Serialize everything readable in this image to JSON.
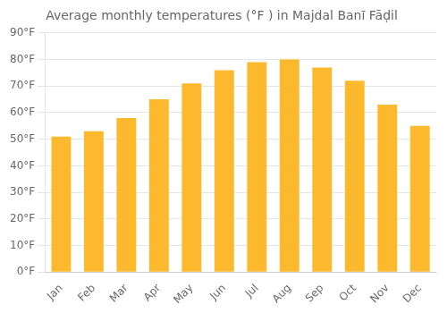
{
  "chart_data": {
    "type": "bar",
    "title": "Average monthly temperatures (°F ) in Majdal Banī Fāḍil",
    "categories": [
      "Jan",
      "Feb",
      "Mar",
      "Apr",
      "May",
      "Jun",
      "Jul",
      "Aug",
      "Sep",
      "Oct",
      "Nov",
      "Dec"
    ],
    "values": [
      51,
      53,
      58,
      65,
      71,
      76,
      79,
      80,
      77,
      72,
      63,
      55
    ],
    "color": "#FDB92E",
    "ylim": [
      0,
      90
    ],
    "yticks": [
      {
        "value": 0,
        "label": "0°F"
      },
      {
        "value": 10,
        "label": "10°F"
      },
      {
        "value": 20,
        "label": "20°F"
      },
      {
        "value": 30,
        "label": "30°F"
      },
      {
        "value": 40,
        "label": "40°F"
      },
      {
        "value": 50,
        "label": "50°F"
      },
      {
        "value": 60,
        "label": "60°F"
      },
      {
        "value": 70,
        "label": "70°F"
      },
      {
        "value": 80,
        "label": "80°F"
      },
      {
        "value": 90,
        "label": "90°F"
      }
    ],
    "grid": true
  }
}
